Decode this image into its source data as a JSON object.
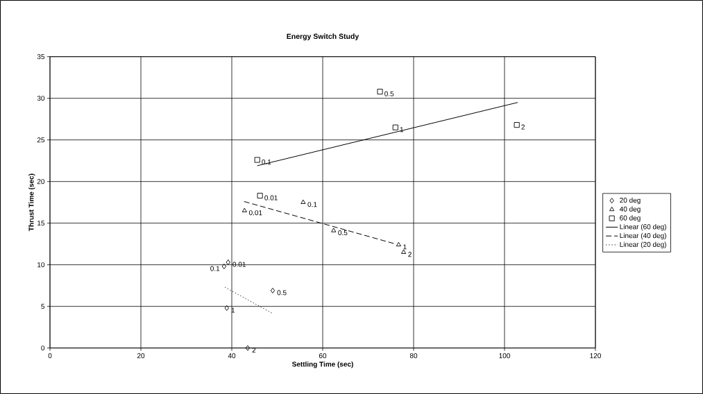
{
  "chart_data": {
    "type": "scatter",
    "title": "Energy Switch Study",
    "xlabel": "Settling Time (sec)",
    "ylabel": "Thrust Time (sec)",
    "xlim": [
      0,
      120
    ],
    "xticks": [
      0,
      20,
      40,
      60,
      80,
      100,
      120
    ],
    "ylim": [
      0,
      35
    ],
    "yticks": [
      0,
      5,
      10,
      15,
      20,
      25,
      30,
      35
    ],
    "grid": true,
    "legend": "right",
    "series": [
      {
        "name": "20 deg",
        "marker": "diamond",
        "color": "#000000",
        "x": [
          39.2,
          38.3,
          49.0,
          38.9,
          43.5
        ],
        "values": [
          10.3,
          9.8,
          6.9,
          4.8,
          0
        ]
      },
      {
        "name": "40 deg",
        "marker": "triangle",
        "color": "#000000",
        "x": [
          42.8,
          55.7,
          62.4,
          76.7,
          77.8
        ],
        "values": [
          16.5,
          17.5,
          14.1,
          12.4,
          11.5
        ]
      },
      {
        "name": "60 deg",
        "marker": "square",
        "color": "#000000",
        "x": [
          46.2,
          45.6,
          72.6,
          76.0,
          102.7
        ],
        "values": [
          18.3,
          22.6,
          30.8,
          26.5,
          26.8
        ]
      },
      {
        "name": "Linear (60 deg)",
        "type": "line",
        "line_style": "solid",
        "color": "#000000",
        "x": [
          45.6,
          102.9
        ],
        "values": [
          21.9,
          29.5
        ]
      },
      {
        "name": "Linear (40 deg)",
        "type": "line",
        "line_style": "dashed",
        "color": "#000000",
        "x": [
          42.7,
          76.0
        ],
        "values": [
          17.6,
          12.5
        ]
      },
      {
        "name": "Linear (20 deg)",
        "type": "line",
        "line_style": "dotted",
        "color": "#000000",
        "x": [
          38.5,
          48.8
        ],
        "values": [
          7.3,
          4.2
        ]
      }
    ],
    "annotations": [
      {
        "text": "0.01",
        "x": 39.2,
        "y": 10.3
      },
      {
        "text": "0.1",
        "x": 38.3,
        "y": 9.8
      },
      {
        "text": "0.5",
        "x": 49.0,
        "y": 6.9
      },
      {
        "text": "1",
        "x": 38.9,
        "y": 4.8
      },
      {
        "text": "2",
        "x": 43.5,
        "y": 0
      },
      {
        "text": "0.01",
        "x": 42.8,
        "y": 16.5
      },
      {
        "text": "0.1",
        "x": 55.7,
        "y": 17.5
      },
      {
        "text": "0.5",
        "x": 62.4,
        "y": 14.1
      },
      {
        "text": "1",
        "x": 76.7,
        "y": 12.4
      },
      {
        "text": "2",
        "x": 77.8,
        "y": 11.5
      },
      {
        "text": "0.01",
        "x": 46.2,
        "y": 18.3
      },
      {
        "text": "0.1",
        "x": 45.6,
        "y": 22.6
      },
      {
        "text": "0.5",
        "x": 72.6,
        "y": 30.8
      },
      {
        "text": "1",
        "x": 76.0,
        "y": 26.5
      },
      {
        "text": "2",
        "x": 102.7,
        "y": 26.8
      }
    ]
  }
}
